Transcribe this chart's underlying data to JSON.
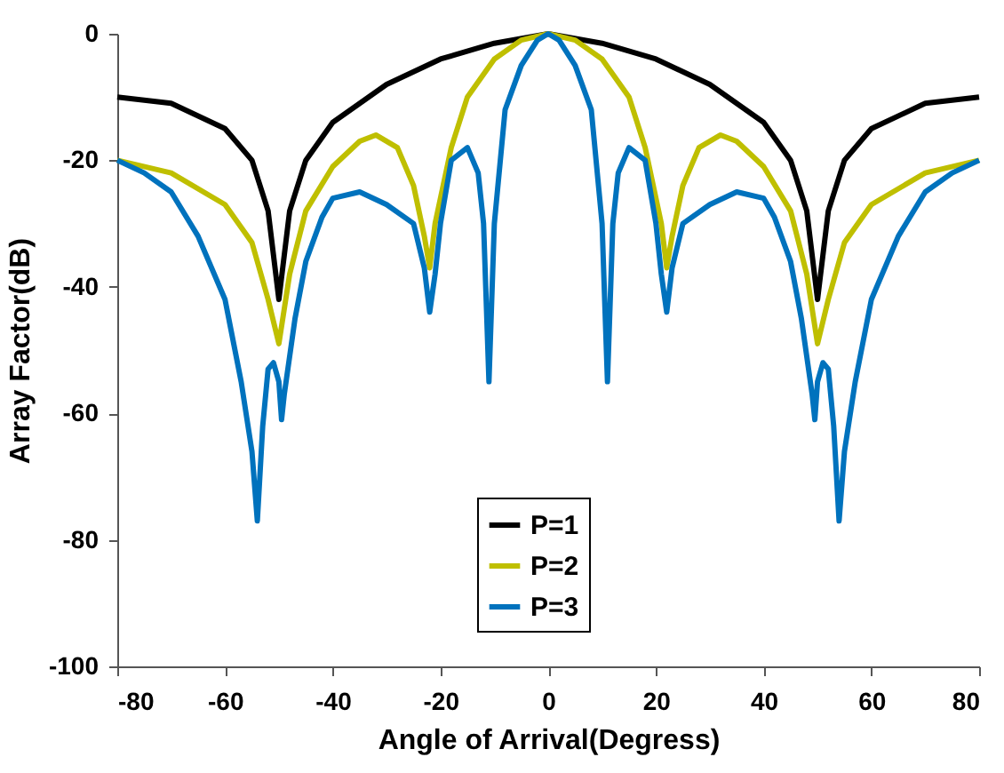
{
  "chart_data": {
    "type": "line",
    "xlabel": "Angle of Arrival(Degress)",
    "ylabel": "Array Factor(dB)",
    "xlim": [
      -80,
      80
    ],
    "ylim": [
      -100,
      0
    ],
    "xticks": [
      -80,
      -60,
      -40,
      -20,
      0,
      20,
      40,
      60,
      80
    ],
    "yticks": [
      -100,
      -80,
      -60,
      -40,
      -20,
      0
    ],
    "grid": false,
    "legend": "bottom",
    "line_style": "solid",
    "marker": "none",
    "series": [
      {
        "name": "P=1",
        "color": "#000000",
        "x": [
          -80,
          -70,
          -60,
          -55,
          -52,
          -50,
          -48,
          -45,
          -40,
          -30,
          -20,
          -10,
          0,
          10,
          20,
          30,
          40,
          45,
          48,
          50,
          52,
          55,
          60,
          70,
          80
        ],
        "values": [
          -10,
          -11,
          -15,
          -20,
          -28,
          -42,
          -28,
          -20,
          -14,
          -8,
          -4,
          -1.5,
          0,
          -1.5,
          -4,
          -8,
          -14,
          -20,
          -28,
          -42,
          -28,
          -20,
          -15,
          -11,
          -10
        ]
      },
      {
        "name": "P=2",
        "color": "#bfbf00",
        "x": [
          -80,
          -70,
          -60,
          -55,
          -52,
          -50,
          -48,
          -45,
          -40,
          -35,
          -32,
          -28,
          -25,
          -23,
          -22,
          -21,
          -18,
          -15,
          -10,
          -5,
          0,
          5,
          10,
          15,
          18,
          21,
          22,
          23,
          25,
          28,
          32,
          35,
          40,
          45,
          48,
          50,
          52,
          55,
          60,
          70,
          80
        ],
        "values": [
          -20,
          -22,
          -27,
          -33,
          -42,
          -49,
          -38,
          -28,
          -21,
          -17,
          -16,
          -18,
          -24,
          -32,
          -37,
          -30,
          -18,
          -10,
          -4,
          -1,
          0,
          -1,
          -4,
          -10,
          -18,
          -30,
          -37,
          -32,
          -24,
          -18,
          -16,
          -17,
          -21,
          -28,
          -38,
          -49,
          -42,
          -33,
          -27,
          -22,
          -20
        ]
      },
      {
        "name": "P=3",
        "color": "#0072bd",
        "x": [
          -80,
          -75,
          -70,
          -65,
          -60,
          -57,
          -55,
          -54,
          -53,
          -52,
          -51,
          -50,
          -49.5,
          -49,
          -47,
          -45,
          -42,
          -40,
          -35,
          -30,
          -25,
          -23,
          -22,
          -21,
          -20,
          -18,
          -15,
          -13,
          -12,
          -11,
          -10,
          -8,
          -5,
          -2,
          0,
          2,
          5,
          8,
          10,
          11,
          12,
          13,
          15,
          18,
          20,
          21,
          22,
          23,
          25,
          30,
          35,
          40,
          42,
          45,
          47,
          49,
          49.5,
          50,
          51,
          52,
          53,
          54,
          55,
          57,
          60,
          65,
          70,
          75,
          80
        ],
        "values": [
          -20,
          -22,
          -25,
          -32,
          -42,
          -55,
          -66,
          -77,
          -62,
          -53,
          -52,
          -55,
          -61,
          -57,
          -45,
          -36,
          -29,
          -26,
          -25,
          -27,
          -30,
          -37,
          -44,
          -38,
          -30,
          -20,
          -18,
          -22,
          -30,
          -55,
          -30,
          -12,
          -5,
          -1,
          0,
          -1,
          -5,
          -12,
          -30,
          -55,
          -30,
          -22,
          -18,
          -20,
          -30,
          -38,
          -44,
          -37,
          -30,
          -27,
          -25,
          -26,
          -29,
          -36,
          -45,
          -57,
          -61,
          -55,
          -52,
          -53,
          -62,
          -77,
          -66,
          -55,
          -42,
          -32,
          -25,
          -22,
          -20
        ]
      }
    ]
  }
}
